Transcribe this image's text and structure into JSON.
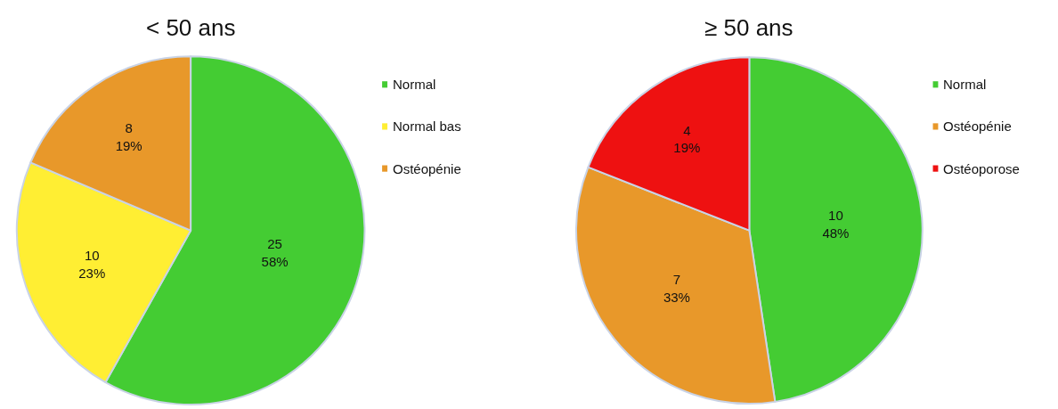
{
  "chart_data": [
    {
      "type": "pie",
      "title": "< 50 ans",
      "categories": [
        "Normal",
        "Normal bas",
        "Ostéopénie"
      ],
      "values": [
        25,
        10,
        8
      ],
      "colors": [
        "#44cc33",
        "#ffee33",
        "#e8982a"
      ],
      "value_labels": [
        "25\n58%",
        "10\n23%",
        "8\n19%"
      ],
      "legend": "right"
    },
    {
      "type": "pie",
      "title": "≥ 50 ans",
      "categories": [
        "Normal",
        "Ostéopénie",
        "Ostéoporose"
      ],
      "values": [
        10,
        7,
        4
      ],
      "colors": [
        "#44cc33",
        "#e8982a",
        "#ee1111"
      ],
      "value_labels": [
        "10\n48%",
        "7\n33%",
        "4\n19%"
      ],
      "legend": "right"
    }
  ]
}
